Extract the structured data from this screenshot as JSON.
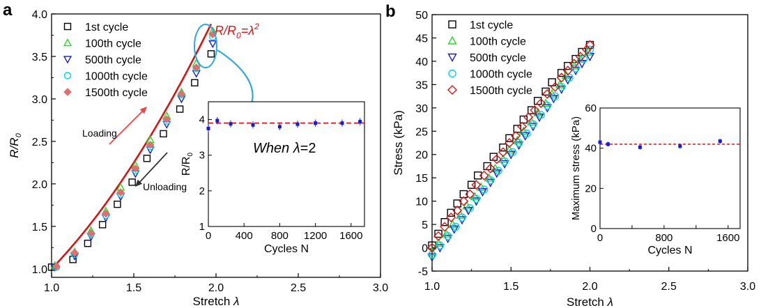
{
  "panels": [
    {
      "label": "a"
    },
    {
      "label": "b"
    }
  ],
  "colors": {
    "series": [
      "#000000",
      "#22dd22",
      "#1a1ad0",
      "#00d4e8",
      "#e07070"
    ],
    "series_b": [
      "#000000",
      "#22dd22",
      "#1a1ad0",
      "#00d4e8",
      "#e01010"
    ],
    "fit": "#dd1111",
    "callout": "#29a8e0",
    "loading": "#ee4444",
    "unloading": "#333333",
    "error": "#1a1ad0",
    "inset_dash": "#ee2222"
  },
  "chart_data": [
    {
      "type": "scatter",
      "panel": "a",
      "xlabel_text": "Stretch ",
      "xlabel_sym": "λ",
      "ylabel_main": "R/R",
      "ylabel_sub": "0",
      "xlim": [
        1.0,
        3.0
      ],
      "ylim": [
        0.9,
        4.0
      ],
      "xticks": [
        "1.0",
        "1.5",
        "2.0",
        "2.5",
        "3.0"
      ],
      "yticks": [
        "1.0",
        "1.5",
        "2.0",
        "2.5",
        "3.0",
        "3.5",
        "4.0"
      ],
      "series": [
        {
          "name": "1st cycle",
          "marker": "square",
          "x": [
            1.0,
            1.13,
            1.22,
            1.31,
            1.4,
            1.49,
            1.58,
            1.68,
            1.78,
            1.87,
            1.97
          ],
          "y": [
            1.02,
            1.11,
            1.3,
            1.52,
            1.76,
            2.02,
            2.3,
            2.59,
            2.88,
            3.19,
            3.53
          ]
        },
        {
          "name": "100th cycle",
          "marker": "triangle-up",
          "x": [
            1.02,
            1.14,
            1.24,
            1.33,
            1.42,
            1.51,
            1.6,
            1.7,
            1.79,
            1.88,
            1.98
          ],
          "y": [
            1.04,
            1.2,
            1.45,
            1.68,
            1.96,
            2.22,
            2.52,
            2.8,
            3.08,
            3.42,
            3.8
          ]
        },
        {
          "name": "500th cycle",
          "marker": "triangle-down",
          "x": [
            1.02,
            1.14,
            1.24,
            1.33,
            1.42,
            1.51,
            1.6,
            1.7,
            1.79,
            1.88,
            1.98
          ],
          "y": [
            1.02,
            1.15,
            1.38,
            1.6,
            1.85,
            2.12,
            2.4,
            2.7,
            3.0,
            3.3,
            3.65
          ]
        },
        {
          "name": "1000th cycle",
          "marker": "circle",
          "x": [
            1.03,
            1.14,
            1.24,
            1.33,
            1.42,
            1.51,
            1.6,
            1.7,
            1.79,
            1.88,
            1.98
          ],
          "y": [
            1.02,
            1.17,
            1.41,
            1.63,
            1.88,
            2.16,
            2.44,
            2.74,
            3.05,
            3.36,
            3.73
          ]
        },
        {
          "name": "1500th cycle",
          "marker": "diamond",
          "x": [
            1.03,
            1.14,
            1.24,
            1.33,
            1.42,
            1.51,
            1.6,
            1.7,
            1.79,
            1.88,
            1.98
          ],
          "y": [
            1.03,
            1.19,
            1.42,
            1.65,
            1.9,
            2.18,
            2.46,
            2.76,
            3.06,
            3.37,
            3.76
          ]
        }
      ],
      "fit_curve": {
        "label_main": "R/R",
        "label_sub": "0",
        "label_rest": "=λ",
        "label_sup": "2",
        "x_from": 1.0,
        "x_to": 1.97
      },
      "arrows": {
        "loading": "Loading",
        "unloading": "Unloading"
      },
      "inset": {
        "xlabel": "Cycles N",
        "ylabel_main": "R/R",
        "ylabel_sub": "0",
        "xlim": [
          0,
          1750
        ],
        "ylim": [
          1,
          4.5
        ],
        "xticks": [
          "0",
          "400",
          "800",
          "1200",
          "1600"
        ],
        "yticks": [
          "1",
          "2",
          "3",
          "4"
        ],
        "annotation_pre": "When ",
        "annotation_sym": "λ",
        "annotation_post": "=2",
        "reference_y": 3.9,
        "points": {
          "x": [
            0,
            100,
            250,
            500,
            800,
            1000,
            1200,
            1500,
            1700
          ],
          "y": [
            3.75,
            3.97,
            3.88,
            3.85,
            3.8,
            3.87,
            3.9,
            3.9,
            3.94
          ],
          "err": [
            0.12,
            0.1,
            0.1,
            0.1,
            0.1,
            0.1,
            0.1,
            0.1,
            0.1
          ]
        }
      }
    },
    {
      "type": "scatter",
      "panel": "b",
      "xlabel_text": "Stretch ",
      "xlabel_sym": "λ",
      "ylabel": "Stress (kPa)",
      "xlim": [
        1.0,
        3.0
      ],
      "ylim": [
        -5,
        50
      ],
      "xticks": [
        "1.0",
        "1.5",
        "2.0",
        "2.5",
        "3.0"
      ],
      "yticks": [
        "-5",
        "0",
        "5",
        "10",
        "15",
        "20",
        "25",
        "30",
        "35",
        "40",
        "45",
        "50"
      ],
      "series": [
        {
          "name": "1st cycle",
          "marker": "square",
          "x": [
            1.0,
            1.04,
            1.08,
            1.12,
            1.16,
            1.2,
            1.25,
            1.29,
            1.35,
            1.39,
            1.45,
            1.49,
            1.54,
            1.58,
            1.63,
            1.67,
            1.72,
            1.76,
            1.82,
            1.86,
            1.91,
            1.95,
            2.0
          ],
          "y": [
            0.5,
            3.0,
            5.5,
            7.5,
            9.5,
            11.5,
            13.5,
            15.5,
            17.5,
            19.5,
            21.5,
            23.5,
            25.5,
            27.5,
            29.5,
            31.5,
            33.5,
            35.5,
            37.5,
            39.0,
            40.5,
            42.0,
            43.5
          ]
        },
        {
          "name": "100th cycle",
          "marker": "triangle-up",
          "x": [
            1.0,
            1.04,
            1.09,
            1.13,
            1.18,
            1.22,
            1.27,
            1.31,
            1.36,
            1.4,
            1.45,
            1.49,
            1.54,
            1.58,
            1.63,
            1.67,
            1.72,
            1.76,
            1.81,
            1.85,
            1.9,
            1.94,
            1.99
          ],
          "y": [
            -1.0,
            1.0,
            3.0,
            5.0,
            7.0,
            9.0,
            11.0,
            13.0,
            15.0,
            17.0,
            19.0,
            21.0,
            23.0,
            25.0,
            27.0,
            29.0,
            31.0,
            33.0,
            35.0,
            37.0,
            39.0,
            40.5,
            42.0
          ]
        },
        {
          "name": "500th cycle",
          "marker": "triangle-down",
          "x": [
            1.0,
            1.05,
            1.1,
            1.14,
            1.19,
            1.23,
            1.28,
            1.32,
            1.37,
            1.41,
            1.46,
            1.5,
            1.55,
            1.59,
            1.64,
            1.68,
            1.73,
            1.77,
            1.82,
            1.86,
            1.91,
            1.95,
            2.0
          ],
          "y": [
            -2.0,
            0.0,
            2.0,
            4.0,
            6.0,
            8.0,
            10.0,
            12.0,
            14.0,
            16.0,
            18.0,
            20.0,
            22.0,
            24.0,
            26.0,
            28.0,
            30.0,
            32.0,
            34.0,
            36.0,
            38.0,
            39.5,
            41.0
          ]
        },
        {
          "name": "1000th cycle",
          "marker": "circle",
          "x": [
            1.0,
            1.05,
            1.1,
            1.15,
            1.19,
            1.24,
            1.28,
            1.33,
            1.37,
            1.42,
            1.46,
            1.51,
            1.55,
            1.6,
            1.64,
            1.69,
            1.73,
            1.78,
            1.82,
            1.87,
            1.91,
            1.96,
            2.0
          ],
          "y": [
            -1.5,
            0.5,
            2.5,
            4.5,
            6.5,
            8.5,
            10.5,
            12.5,
            14.5,
            16.5,
            18.5,
            20.5,
            22.5,
            24.5,
            26.5,
            28.5,
            30.5,
            32.5,
            34.5,
            36.5,
            38.5,
            40.5,
            42.5
          ]
        },
        {
          "name": "1500th cycle",
          "marker": "diamond",
          "x": [
            1.0,
            1.04,
            1.08,
            1.12,
            1.16,
            1.2,
            1.24,
            1.28,
            1.33,
            1.37,
            1.41,
            1.45,
            1.49,
            1.53,
            1.57,
            1.61,
            1.65,
            1.69,
            1.73,
            1.78,
            1.82,
            1.86,
            1.9,
            1.94,
            1.98,
            2.0
          ],
          "y": [
            0.0,
            2.5,
            4.5,
            6.5,
            8.0,
            10.0,
            11.5,
            13.5,
            15.5,
            17.0,
            19.0,
            20.5,
            22.5,
            24.0,
            26.0,
            28.0,
            29.5,
            31.0,
            33.0,
            34.5,
            36.5,
            38.0,
            39.5,
            41.0,
            42.5,
            43.5
          ]
        }
      ],
      "inset": {
        "xlabel": "Cycles N",
        "ylabel": "Maximum stress (kPa)",
        "xlim": [
          0,
          1750
        ],
        "ylim": [
          0,
          60
        ],
        "xticks": [
          "0",
          "400",
          "800",
          "1200",
          "1600"
        ],
        "yticks": [
          "0",
          "20",
          "40",
          "60"
        ],
        "reference_y": 42,
        "points": {
          "x": [
            0,
            100,
            500,
            1000,
            1500
          ],
          "y": [
            43.0,
            42.0,
            40.5,
            41.0,
            43.5
          ],
          "err": [
            1.2,
            1.2,
            1.2,
            1.2,
            1.2
          ]
        }
      }
    }
  ]
}
